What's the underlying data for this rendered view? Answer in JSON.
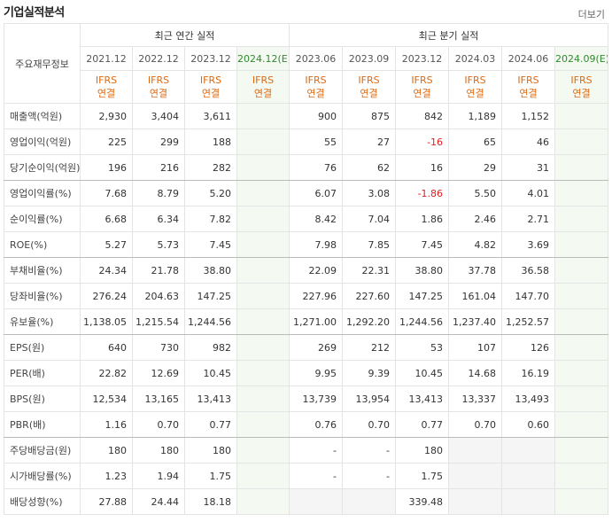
{
  "header": {
    "title": "기업실적분석",
    "more": "더보기"
  },
  "table": {
    "row_header_label": "주요재무정보",
    "groups": [
      "최근 연간 실적",
      "최근 분기 실적"
    ],
    "group_spans": [
      4,
      6
    ],
    "periods": [
      "2021.12",
      "2022.12",
      "2023.12",
      "2024.12(E)",
      "2023.06",
      "2023.09",
      "2023.12",
      "2024.03",
      "2024.06",
      "2024.09(E)"
    ],
    "estimate": [
      false,
      false,
      false,
      true,
      false,
      false,
      false,
      false,
      false,
      true
    ],
    "standard": [
      [
        "IFRS",
        "연결"
      ],
      [
        "IFRS",
        "연결"
      ],
      [
        "IFRS",
        "연결"
      ],
      [
        "IFRS",
        "연결"
      ],
      [
        "IFRS",
        "연결"
      ],
      [
        "IFRS",
        "연결"
      ],
      [
        "IFRS",
        "연결"
      ],
      [
        "IFRS",
        "연결"
      ],
      [
        "IFRS",
        "연결"
      ],
      [
        "IFRS",
        "연결"
      ]
    ],
    "section_ends": [
      2,
      5,
      8,
      12
    ],
    "rows": [
      {
        "label": "매출액(억원)",
        "cells": [
          "2,930",
          "3,404",
          "3,611",
          null,
          "900",
          "875",
          "842",
          "1,189",
          "1,152",
          null
        ]
      },
      {
        "label": "영업이익(억원)",
        "cells": [
          "225",
          "299",
          "188",
          null,
          "55",
          "27",
          "-16",
          "65",
          "46",
          null
        ]
      },
      {
        "label": "당기순이익(억원)",
        "cells": [
          "196",
          "216",
          "282",
          null,
          "76",
          "62",
          "16",
          "29",
          "31",
          null
        ]
      },
      {
        "label": "영업이익률(%)",
        "cells": [
          "7.68",
          "8.79",
          "5.20",
          null,
          "6.07",
          "3.08",
          "-1.86",
          "5.50",
          "4.01",
          null
        ]
      },
      {
        "label": "순이익률(%)",
        "cells": [
          "6.68",
          "6.34",
          "7.82",
          null,
          "8.42",
          "7.04",
          "1.86",
          "2.46",
          "2.71",
          null
        ]
      },
      {
        "label": "ROE(%)",
        "cells": [
          "5.27",
          "5.73",
          "7.45",
          null,
          "7.98",
          "7.85",
          "7.45",
          "4.82",
          "3.69",
          null
        ]
      },
      {
        "label": "부채비율(%)",
        "cells": [
          "24.34",
          "21.78",
          "38.80",
          null,
          "22.09",
          "22.31",
          "38.80",
          "37.78",
          "36.58",
          null
        ]
      },
      {
        "label": "당좌비율(%)",
        "cells": [
          "276.24",
          "204.63",
          "147.25",
          null,
          "227.96",
          "227.60",
          "147.25",
          "161.04",
          "147.70",
          null
        ]
      },
      {
        "label": "유보율(%)",
        "cells": [
          "1,138.05",
          "1,215.54",
          "1,244.56",
          null,
          "1,271.00",
          "1,292.20",
          "1,244.56",
          "1,237.40",
          "1,252.57",
          null
        ]
      },
      {
        "label": "EPS(원)",
        "cells": [
          "640",
          "730",
          "982",
          null,
          "269",
          "212",
          "53",
          "107",
          "126",
          null
        ]
      },
      {
        "label": "PER(배)",
        "cells": [
          "22.82",
          "12.69",
          "10.45",
          null,
          "9.95",
          "9.39",
          "10.45",
          "14.68",
          "16.19",
          null
        ]
      },
      {
        "label": "BPS(원)",
        "cells": [
          "12,534",
          "13,165",
          "13,413",
          null,
          "13,739",
          "13,954",
          "13,413",
          "13,337",
          "13,493",
          null
        ]
      },
      {
        "label": "PBR(배)",
        "cells": [
          "1.16",
          "0.70",
          "0.77",
          null,
          "0.76",
          "0.70",
          "0.77",
          "0.70",
          "0.60",
          null
        ]
      },
      {
        "label": "주당배당금(원)",
        "cells": [
          "180",
          "180",
          "180",
          null,
          "-",
          "-",
          "180",
          null,
          null,
          null
        ]
      },
      {
        "label": "시가배당률(%)",
        "cells": [
          "1.23",
          "1.94",
          "1.75",
          null,
          "-",
          "-",
          "1.75",
          null,
          null,
          null
        ]
      },
      {
        "label": "배당성향(%)",
        "cells": [
          "27.88",
          "24.44",
          "18.18",
          null,
          null,
          null,
          "339.48",
          null,
          null,
          null
        ]
      }
    ]
  }
}
